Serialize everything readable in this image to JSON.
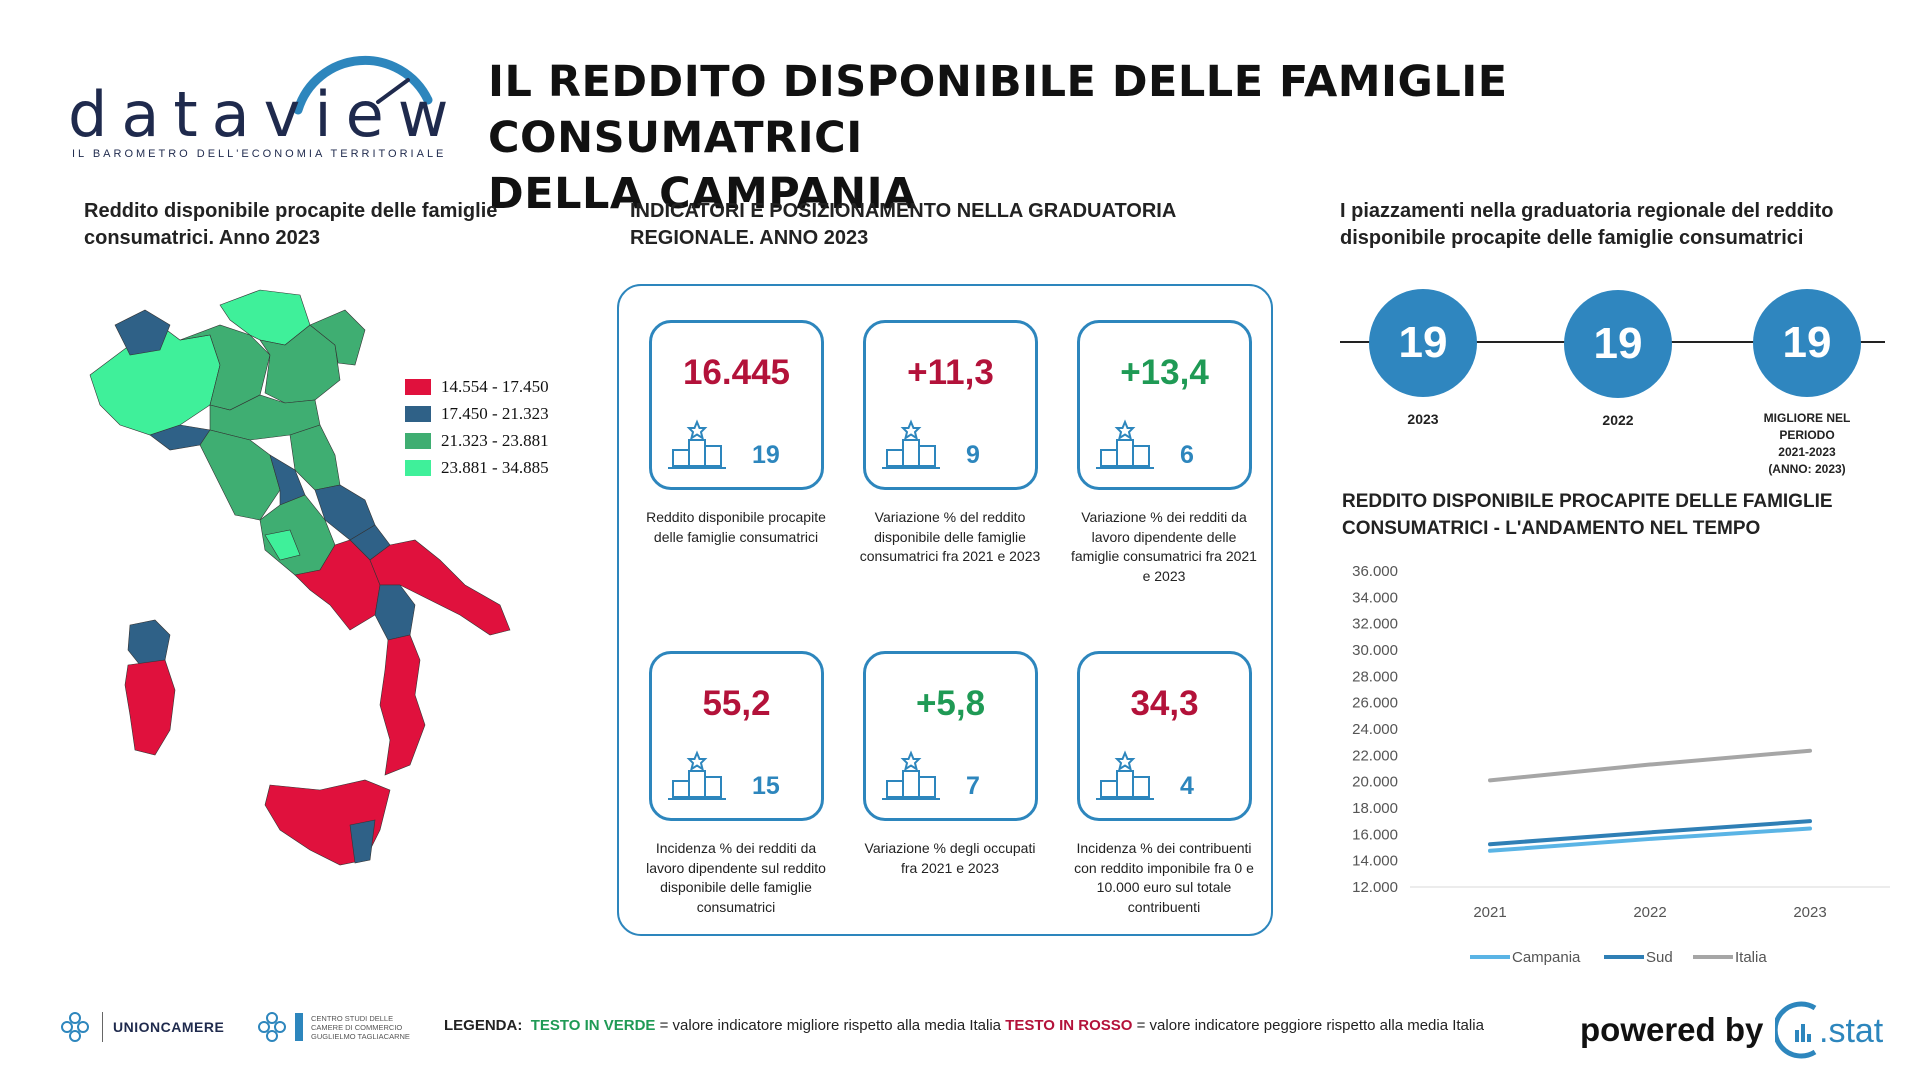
{
  "header": {
    "logo_word": "dataview",
    "logo_tagline": "IL BAROMETRO DELL'ECONOMIA TERRITORIALE",
    "title_line1": "IL REDDITO DISPONIBILE DELLE FAMIGLIE CONSUMATRICI",
    "title_line2": "DELLA CAMPANIA"
  },
  "map_section": {
    "title": "Reddito disponibile procapite delle famiglie consumatrici. Anno 2023",
    "legend": [
      {
        "label": "14.554 - 17.450",
        "color": "#e0113d"
      },
      {
        "label": "17.450 - 21.323",
        "color": "#2f6187"
      },
      {
        "label": "21.323 - 23.881",
        "color": "#3fae72"
      },
      {
        "label": "23.881 - 34.885",
        "color": "#3ff09a"
      }
    ]
  },
  "indicators_section": {
    "title": "INDICATORI E POSIZIONAMENTO NELLA GRADUATORIA REGIONALE. ANNO 2023",
    "cards": [
      {
        "value": "16.445",
        "rank": "19",
        "color": "red",
        "desc": "Reddito disponibile procapite delle famiglie consumatrici"
      },
      {
        "value": "+11,3",
        "rank": "9",
        "color": "red",
        "desc": "Variazione % del reddito disponibile delle famiglie consumatrici fra 2021 e 2023"
      },
      {
        "value": "+13,4",
        "rank": "6",
        "color": "green",
        "desc": "Variazione % dei redditi da lavoro dipendente delle famiglie consumatrici fra 2021 e 2023"
      },
      {
        "value": "55,2",
        "rank": "15",
        "color": "red",
        "desc": "Incidenza % dei redditi da lavoro dipendente sul reddito disponibile delle famiglie consumatrici"
      },
      {
        "value": "+5,8",
        "rank": "7",
        "color": "green",
        "desc": "Variazione % degli occupati fra 2021 e 2023"
      },
      {
        "value": "34,3",
        "rank": "4",
        "color": "red",
        "desc": "Incidenza % dei contribuenti con reddito imponibile fra 0 e 10.000 euro sul totale contribuenti"
      }
    ]
  },
  "ranking_section": {
    "title": "I piazzamenti nella graduatoria regionale del reddito disponibile procapite delle famiglie consumatrici",
    "items": [
      {
        "rank": "19",
        "label": "2023"
      },
      {
        "rank": "19",
        "label": "2022"
      },
      {
        "rank": "19",
        "label_lines": [
          "MIGLIORE NEL",
          "PERIODO",
          "2021-2023",
          "(ANNO: 2023)"
        ]
      }
    ]
  },
  "chart_section": {
    "title": "REDDITO DISPONIBILE PROCAPITE DELLE FAMIGLIE CONSUMATRICI - L'ANDAMENTO NEL TEMPO"
  },
  "chart_data": {
    "type": "line",
    "title": "REDDITO DISPONIBILE PROCAPITE DELLE FAMIGLIE CONSUMATRICI - L'ANDAMENTO NEL TEMPO",
    "x": [
      "2021",
      "2022",
      "2023"
    ],
    "ylim": [
      12000,
      36000
    ],
    "yticks": [
      12000,
      14000,
      16000,
      18000,
      20000,
      22000,
      24000,
      26000,
      28000,
      30000,
      32000,
      34000,
      36000
    ],
    "ytick_labels": [
      "12.000",
      "14.000",
      "16.000",
      "18.000",
      "20.000",
      "22.000",
      "24.000",
      "26.000",
      "28.000",
      "30.000",
      "32.000",
      "34.000",
      "36.000"
    ],
    "series": [
      {
        "name": "Campania",
        "color": "#5ab4e5",
        "values": [
          14750,
          15650,
          16445
        ]
      },
      {
        "name": "Sud",
        "color": "#2f7fb5",
        "values": [
          15250,
          16150,
          17000
        ]
      },
      {
        "name": "Italia",
        "color": "#a6a6a6",
        "values": [
          20100,
          21300,
          22350
        ]
      }
    ],
    "legend_position": "bottom",
    "grid": false
  },
  "footer": {
    "unioncamere": "UNIONCAMERE",
    "centro_studi": "CENTRO STUDI DELLE CAMERE DI COMMERCIO GUGLIELMO TAGLIACARNE",
    "legend_label": "LEGENDA:",
    "legend_green": "TESTO IN VERDE",
    "legend_green_desc": "= valore indicatore migliore rispetto alla media Italia",
    "legend_red": "TESTO IN ROSSO",
    "legend_red_desc": "= valore indicatore peggiore rispetto alla media Italia",
    "powered_by": "powered by",
    "cstat": "stat"
  },
  "colors": {
    "accent_blue": "#2d86bd",
    "bad_red": "#b3123a",
    "good_green": "#1f9a55"
  }
}
